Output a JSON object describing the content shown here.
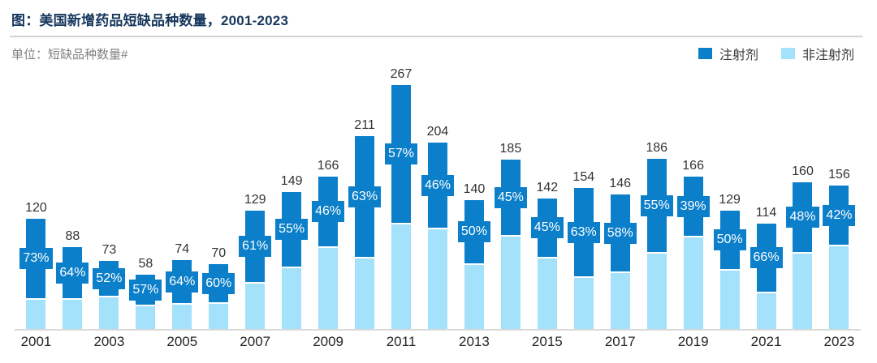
{
  "header": {
    "title": "图：美国新增药品短缺品种数量，2001-2023",
    "unit_label": "单位：短缺品种数量#"
  },
  "legend": {
    "items": [
      {
        "label": "注射剂",
        "color": "#0b7fc9"
      },
      {
        "label": "非注射剂",
        "color": "#a4e1fb"
      }
    ]
  },
  "colors": {
    "title_navy": "#17375d",
    "divider_gray": "#d2d2d2",
    "axis_gray": "#d9d9d9",
    "injectable_dark_blue": "#0b7fc9",
    "non_injectable_light_blue": "#a4e1fb",
    "pct_label_text": "#ffffff",
    "value_label_text": "#333333"
  },
  "chart_data": {
    "type": "bar",
    "stacked": true,
    "title": "美国新增药品短缺品种数量，2001-2023",
    "xlabel": "",
    "ylabel": "短缺品种数量#",
    "grid": false,
    "legend_position": "top-right",
    "ylim": [
      0,
      280
    ],
    "categories": [
      "2001",
      "2002",
      "2003",
      "2004",
      "2005",
      "2006",
      "2007",
      "2008",
      "2009",
      "2010",
      "2011",
      "2012",
      "2013",
      "2014",
      "2015",
      "2016",
      "2017",
      "2018",
      "2019",
      "2020",
      "2021",
      "2022",
      "2023"
    ],
    "x_tick_labels": [
      "2001",
      "2003",
      "2005",
      "2007",
      "2009",
      "2011",
      "2013",
      "2015",
      "2017",
      "2019",
      "2021",
      "2023"
    ],
    "totals": [
      120,
      88,
      73,
      58,
      74,
      70,
      129,
      149,
      166,
      211,
      267,
      204,
      140,
      185,
      142,
      154,
      146,
      186,
      166,
      129,
      114,
      160,
      156
    ],
    "injectable_share_pct": [
      73,
      64,
      52,
      57,
      64,
      60,
      61,
      55,
      46,
      63,
      57,
      46,
      50,
      45,
      45,
      63,
      58,
      55,
      39,
      50,
      66,
      48,
      42
    ],
    "series": [
      {
        "name": "注射剂",
        "position": "top",
        "color": "#0b7fc9",
        "note": "share shown as % label on each bar"
      },
      {
        "name": "非注射剂",
        "position": "bottom",
        "color": "#a4e1fb"
      }
    ]
  }
}
